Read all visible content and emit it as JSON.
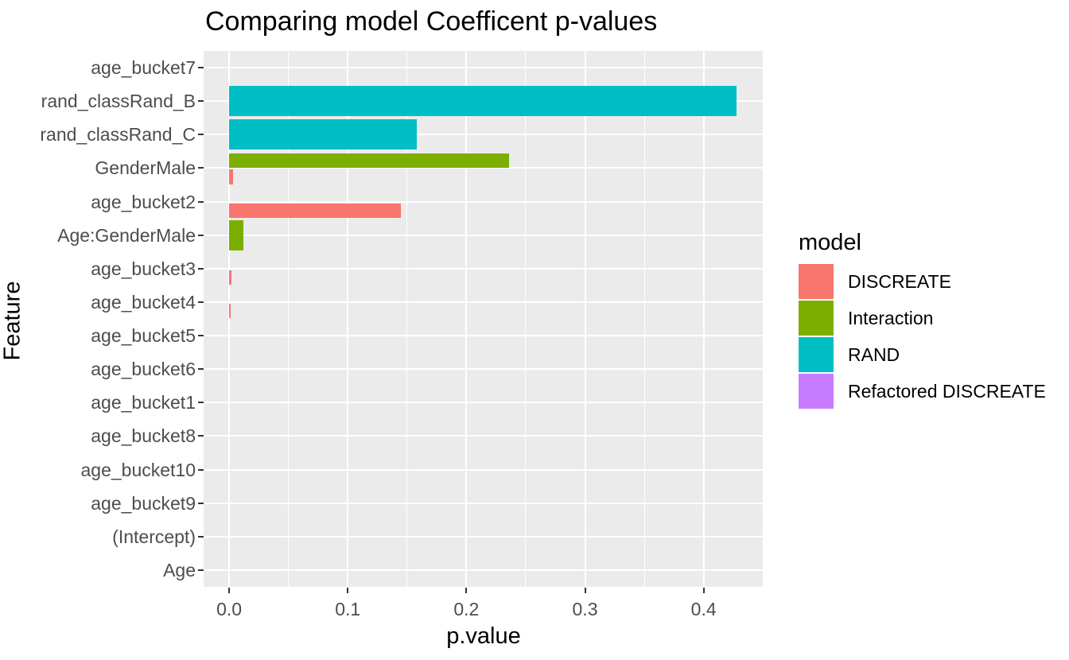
{
  "chart_data": {
    "type": "bar",
    "orientation": "horizontal",
    "title": "Comparing model Coefficent p-values",
    "xlabel": "p.value",
    "ylabel": "Feature",
    "xlim": [
      -0.0215,
      0.4505
    ],
    "grid": true,
    "xticks": [
      {
        "value": 0.0,
        "label": "0.0"
      },
      {
        "value": 0.1,
        "label": "0.1"
      },
      {
        "value": 0.2,
        "label": "0.2"
      },
      {
        "value": 0.3,
        "label": "0.3"
      },
      {
        "value": 0.4,
        "label": "0.4"
      }
    ],
    "minor_xticks": [
      0.05,
      0.15,
      0.25,
      0.35,
      0.45
    ],
    "categories": [
      "age_bucket7",
      "rand_classRand_B",
      "rand_classRand_C",
      "GenderMale",
      "age_bucket2",
      "Age:GenderMale",
      "age_bucket3",
      "age_bucket4",
      "age_bucket5",
      "age_bucket6",
      "age_bucket1",
      "age_bucket8",
      "age_bucket10",
      "age_bucket9",
      "(Intercept)",
      "Age"
    ],
    "series_colors": {
      "DISCREATE": "#F8766D",
      "Interaction": "#7CAE00",
      "RAND": "#00BFC4",
      "Refactored DISCREATE": "#C77CFF"
    },
    "bars": [
      {
        "feature": "rand_classRand_B",
        "model": "RAND",
        "value": 0.428,
        "slot": "full"
      },
      {
        "feature": "rand_classRand_C",
        "model": "RAND",
        "value": 0.158,
        "slot": "full"
      },
      {
        "feature": "GenderMale",
        "model": "Interaction",
        "value": 0.236,
        "slot": "upper"
      },
      {
        "feature": "GenderMale",
        "model": "DISCREATE",
        "value": 0.003,
        "slot": "lower"
      },
      {
        "feature": "age_bucket2",
        "model": "DISCREATE",
        "value": 0.145,
        "slot": "lower"
      },
      {
        "feature": "Age:GenderMale",
        "model": "Interaction",
        "value": 0.012,
        "slot": "full"
      },
      {
        "feature": "age_bucket3",
        "model": "DISCREATE",
        "value": 0.002,
        "slot": "lower"
      },
      {
        "feature": "age_bucket4",
        "model": "DISCREATE",
        "value": 0.001,
        "slot": "lower"
      }
    ],
    "legend": {
      "title": "model",
      "position": "right",
      "entries": [
        {
          "label": "DISCREATE",
          "color": "#F8766D"
        },
        {
          "label": "Interaction",
          "color": "#7CAE00"
        },
        {
          "label": "RAND",
          "color": "#00BFC4"
        },
        {
          "label": "Refactored DISCREATE",
          "color": "#C77CFF"
        }
      ]
    },
    "panel_background": "#EBEBEB",
    "gridline_color": "#FFFFFF",
    "tick_color": "#333333",
    "axis_text_color": "#4D4D4D"
  }
}
